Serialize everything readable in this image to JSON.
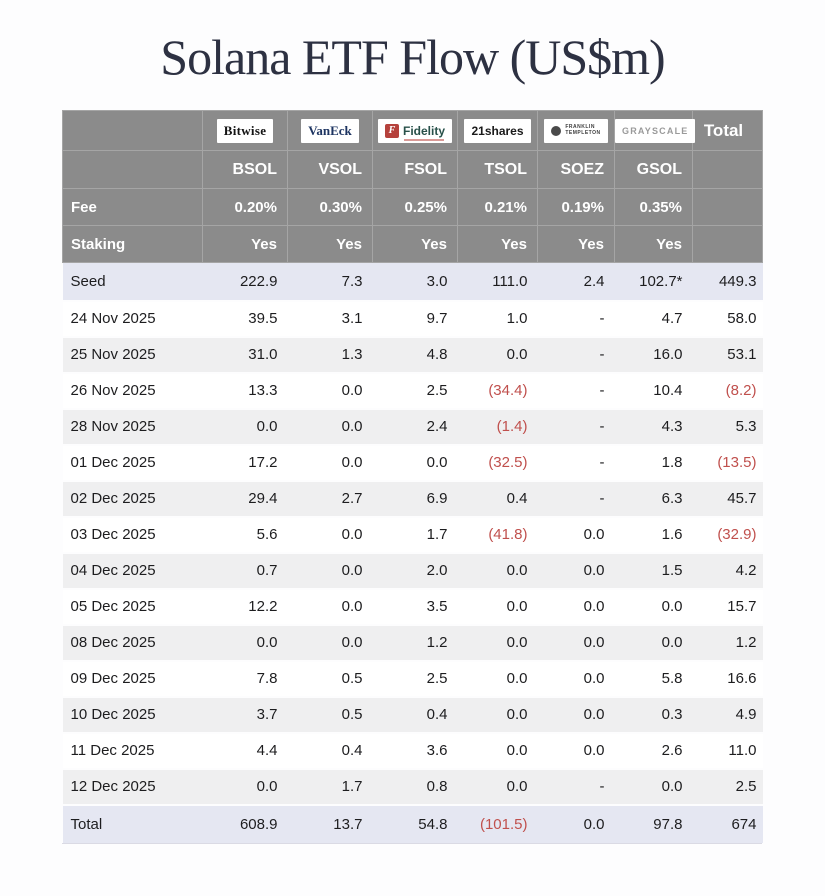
{
  "title": "Solana ETF Flow (US$m)",
  "header": {
    "total_label": "Total",
    "fee_label": "Fee",
    "staking_label": "Staking"
  },
  "table": {
    "providers": [
      {
        "id": "bitwise",
        "name": "Bitwise",
        "logo_text": "Bitwise",
        "ticker": "BSOL",
        "fee": "0.20%",
        "staking": "Yes"
      },
      {
        "id": "vaneck",
        "name": "VanEck",
        "logo_text": "VanEck",
        "ticker": "VSOL",
        "fee": "0.30%",
        "staking": "Yes"
      },
      {
        "id": "fidelity",
        "name": "Fidelity",
        "logo_badge": "F",
        "logo_text": "Fidelity",
        "ticker": "FSOL",
        "fee": "0.25%",
        "staking": "Yes"
      },
      {
        "id": "shares21",
        "name": "21shares",
        "logo_text": "21shares",
        "ticker": "TSOL",
        "fee": "0.21%",
        "staking": "Yes"
      },
      {
        "id": "franklin",
        "name": "Franklin Templeton",
        "logo_lines": [
          "FRANKLIN",
          "TEMPLETON"
        ],
        "ticker": "SOEZ",
        "fee": "0.19%",
        "staking": "Yes"
      },
      {
        "id": "grayscale",
        "name": "Grayscale",
        "logo_text": "GRAYSCALE",
        "ticker": "GSOL",
        "fee": "0.35%",
        "staking": "Yes"
      }
    ],
    "rows": [
      {
        "label": "Seed",
        "style": "highlight",
        "values": [
          "222.9",
          "7.3",
          "3.0",
          "111.0",
          "2.4",
          "102.7*"
        ],
        "total": "449.3"
      },
      {
        "label": "24 Nov 2025",
        "style": "plain",
        "values": [
          "39.5",
          "3.1",
          "9.7",
          "1.0",
          "-",
          "4.7"
        ],
        "total": "58.0"
      },
      {
        "label": "25 Nov 2025",
        "style": "alt",
        "values": [
          "31.0",
          "1.3",
          "4.8",
          "0.0",
          "-",
          "16.0"
        ],
        "total": "53.1"
      },
      {
        "label": "26 Nov 2025",
        "style": "plain",
        "values": [
          "13.3",
          "0.0",
          "2.5",
          "(34.4)",
          "-",
          "10.4"
        ],
        "total": "(8.2)"
      },
      {
        "label": "28 Nov 2025",
        "style": "alt",
        "values": [
          "0.0",
          "0.0",
          "2.4",
          "(1.4)",
          "-",
          "4.3"
        ],
        "total": "5.3"
      },
      {
        "label": "01 Dec 2025",
        "style": "plain",
        "values": [
          "17.2",
          "0.0",
          "0.0",
          "(32.5)",
          "-",
          "1.8"
        ],
        "total": "(13.5)"
      },
      {
        "label": "02 Dec 2025",
        "style": "alt",
        "values": [
          "29.4",
          "2.7",
          "6.9",
          "0.4",
          "-",
          "6.3"
        ],
        "total": "45.7"
      },
      {
        "label": "03 Dec 2025",
        "style": "plain",
        "values": [
          "5.6",
          "0.0",
          "1.7",
          "(41.8)",
          "0.0",
          "1.6"
        ],
        "total": "(32.9)"
      },
      {
        "label": "04 Dec 2025",
        "style": "alt",
        "values": [
          "0.7",
          "0.0",
          "2.0",
          "0.0",
          "0.0",
          "1.5"
        ],
        "total": "4.2"
      },
      {
        "label": "05 Dec 2025",
        "style": "plain",
        "values": [
          "12.2",
          "0.0",
          "3.5",
          "0.0",
          "0.0",
          "0.0"
        ],
        "total": "15.7"
      },
      {
        "label": "08 Dec 2025",
        "style": "alt",
        "values": [
          "0.0",
          "0.0",
          "1.2",
          "0.0",
          "0.0",
          "0.0"
        ],
        "total": "1.2"
      },
      {
        "label": "09 Dec 2025",
        "style": "plain",
        "values": [
          "7.8",
          "0.5",
          "2.5",
          "0.0",
          "0.0",
          "5.8"
        ],
        "total": "16.6"
      },
      {
        "label": "10 Dec 2025",
        "style": "alt",
        "values": [
          "3.7",
          "0.5",
          "0.4",
          "0.0",
          "0.0",
          "0.3"
        ],
        "total": "4.9"
      },
      {
        "label": "11 Dec 2025",
        "style": "plain",
        "values": [
          "4.4",
          "0.4",
          "3.6",
          "0.0",
          "0.0",
          "2.6"
        ],
        "total": "11.0"
      },
      {
        "label": "12 Dec 2025",
        "style": "alt",
        "values": [
          "0.0",
          "1.7",
          "0.8",
          "0.0",
          "-",
          "0.0"
        ],
        "total": "2.5"
      },
      {
        "label": "Total",
        "style": "highlight",
        "values": [
          "608.9",
          "13.7",
          "54.8",
          "(101.5)",
          "0.0",
          "97.8"
        ],
        "total": "674"
      }
    ]
  },
  "colors": {
    "header_bg": "#8b8b8b",
    "highlight_row_bg": "#e5e7f2",
    "alt_row_bg": "#efeff0",
    "negative": "#c0504d",
    "title_ink": "#2d3142",
    "fidelity_red": "#b5413c",
    "vaneck_navy": "#1d3461",
    "fidelity_green": "#28514a",
    "grayscale_gray": "#9a9a9a"
  },
  "chart_data": {
    "type": "table",
    "title": "Solana ETF Flow (US$m)",
    "columns": [
      "",
      "BSOL",
      "VSOL",
      "FSOL",
      "TSOL",
      "SOEZ",
      "GSOL",
      "Total"
    ],
    "issuers": [
      "Bitwise",
      "VanEck",
      "Fidelity",
      "21shares",
      "Franklin Templeton",
      "Grayscale"
    ],
    "fees_percent": [
      0.2,
      0.3,
      0.25,
      0.21,
      0.19,
      0.35
    ],
    "staking": [
      "Yes",
      "Yes",
      "Yes",
      "Yes",
      "Yes",
      "Yes"
    ],
    "rows": [
      {
        "label": "Seed",
        "values": [
          222.9,
          7.3,
          3.0,
          111.0,
          2.4,
          102.7
        ],
        "total": 449.3
      },
      {
        "label": "24 Nov 2025",
        "values": [
          39.5,
          3.1,
          9.7,
          1.0,
          null,
          4.7
        ],
        "total": 58.0
      },
      {
        "label": "25 Nov 2025",
        "values": [
          31.0,
          1.3,
          4.8,
          0.0,
          null,
          16.0
        ],
        "total": 53.1
      },
      {
        "label": "26 Nov 2025",
        "values": [
          13.3,
          0.0,
          2.5,
          -34.4,
          null,
          10.4
        ],
        "total": -8.2
      },
      {
        "label": "28 Nov 2025",
        "values": [
          0.0,
          0.0,
          2.4,
          -1.4,
          null,
          4.3
        ],
        "total": 5.3
      },
      {
        "label": "01 Dec 2025",
        "values": [
          17.2,
          0.0,
          0.0,
          -32.5,
          null,
          1.8
        ],
        "total": -13.5
      },
      {
        "label": "02 Dec 2025",
        "values": [
          29.4,
          2.7,
          6.9,
          0.4,
          null,
          6.3
        ],
        "total": 45.7
      },
      {
        "label": "03 Dec 2025",
        "values": [
          5.6,
          0.0,
          1.7,
          -41.8,
          0.0,
          1.6
        ],
        "total": -32.9
      },
      {
        "label": "04 Dec 2025",
        "values": [
          0.7,
          0.0,
          2.0,
          0.0,
          0.0,
          1.5
        ],
        "total": 4.2
      },
      {
        "label": "05 Dec 2025",
        "values": [
          12.2,
          0.0,
          3.5,
          0.0,
          0.0,
          0.0
        ],
        "total": 15.7
      },
      {
        "label": "08 Dec 2025",
        "values": [
          0.0,
          0.0,
          1.2,
          0.0,
          0.0,
          0.0
        ],
        "total": 1.2
      },
      {
        "label": "09 Dec 2025",
        "values": [
          7.8,
          0.5,
          2.5,
          0.0,
          0.0,
          5.8
        ],
        "total": 16.6
      },
      {
        "label": "10 Dec 2025",
        "values": [
          3.7,
          0.5,
          0.4,
          0.0,
          0.0,
          0.3
        ],
        "total": 4.9
      },
      {
        "label": "11 Dec 2025",
        "values": [
          4.4,
          0.4,
          3.6,
          0.0,
          0.0,
          2.6
        ],
        "total": 11.0
      },
      {
        "label": "12 Dec 2025",
        "values": [
          0.0,
          1.7,
          0.8,
          0.0,
          null,
          0.0
        ],
        "total": 2.5
      },
      {
        "label": "Total",
        "values": [
          608.9,
          13.7,
          54.8,
          -101.5,
          0.0,
          97.8
        ],
        "total": 674
      }
    ]
  }
}
